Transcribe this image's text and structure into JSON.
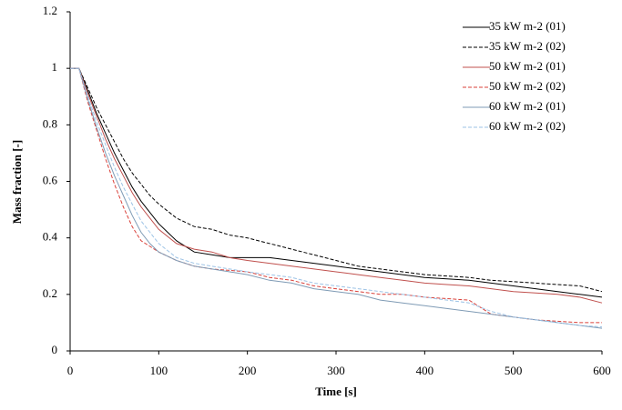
{
  "chart_data": {
    "type": "line",
    "x_label": "Time [s]",
    "y_label": "Mass fraction [-]",
    "x": [
      0,
      10,
      20,
      30,
      40,
      50,
      60,
      70,
      80,
      90,
      100,
      120,
      140,
      160,
      180,
      200,
      225,
      250,
      275,
      300,
      325,
      350,
      375,
      400,
      425,
      450,
      475,
      500,
      525,
      550,
      575,
      600
    ],
    "series": [
      {
        "name": "35 kW m-2 (01)",
        "color": "#000000",
        "dash": false,
        "values": [
          1,
          1,
          0.92,
          0.84,
          0.77,
          0.7,
          0.64,
          0.58,
          0.53,
          0.49,
          0.45,
          0.39,
          0.35,
          0.34,
          0.33,
          0.33,
          0.33,
          0.32,
          0.31,
          0.3,
          0.29,
          0.28,
          0.27,
          0.26,
          0.255,
          0.25,
          0.24,
          0.23,
          0.22,
          0.21,
          0.2,
          0.19
        ]
      },
      {
        "name": "35 kW m-2 (02)",
        "color": "#000000",
        "dash": true,
        "values": [
          1,
          1,
          0.93,
          0.86,
          0.8,
          0.74,
          0.68,
          0.63,
          0.59,
          0.55,
          0.52,
          0.47,
          0.44,
          0.43,
          0.41,
          0.4,
          0.38,
          0.36,
          0.34,
          0.32,
          0.3,
          0.29,
          0.28,
          0.27,
          0.265,
          0.26,
          0.25,
          0.245,
          0.24,
          0.235,
          0.23,
          0.21
        ]
      },
      {
        "name": "50 kW m-2 (01)",
        "color": "#c0504d",
        "dash": false,
        "values": [
          1,
          1,
          0.91,
          0.83,
          0.75,
          0.68,
          0.62,
          0.56,
          0.51,
          0.47,
          0.43,
          0.38,
          0.36,
          0.35,
          0.33,
          0.32,
          0.31,
          0.3,
          0.29,
          0.28,
          0.27,
          0.26,
          0.25,
          0.24,
          0.235,
          0.23,
          0.22,
          0.21,
          0.205,
          0.2,
          0.19,
          0.17
        ]
      },
      {
        "name": "50 kW m-2 (02)",
        "color": "#d9413a",
        "dash": true,
        "values": [
          1,
          1,
          0.88,
          0.78,
          0.68,
          0.59,
          0.51,
          0.44,
          0.39,
          0.37,
          0.35,
          0.32,
          0.3,
          0.29,
          0.285,
          0.28,
          0.26,
          0.25,
          0.23,
          0.22,
          0.21,
          0.2,
          0.2,
          0.19,
          0.185,
          0.18,
          0.13,
          0.12,
          0.11,
          0.105,
          0.1,
          0.1
        ]
      },
      {
        "name": "60 kW m-2 (01)",
        "color": "#7f9bb5",
        "dash": false,
        "values": [
          1,
          1,
          0.89,
          0.79,
          0.7,
          0.62,
          0.55,
          0.48,
          0.42,
          0.38,
          0.35,
          0.32,
          0.3,
          0.29,
          0.28,
          0.27,
          0.25,
          0.24,
          0.22,
          0.21,
          0.2,
          0.18,
          0.17,
          0.16,
          0.15,
          0.14,
          0.13,
          0.12,
          0.11,
          0.1,
          0.09,
          0.08
        ]
      },
      {
        "name": "60 kW m-2 (02)",
        "color": "#9dc3e6",
        "dash": true,
        "values": [
          1,
          1,
          0.9,
          0.81,
          0.73,
          0.65,
          0.58,
          0.52,
          0.46,
          0.42,
          0.38,
          0.33,
          0.31,
          0.3,
          0.29,
          0.28,
          0.27,
          0.26,
          0.24,
          0.23,
          0.22,
          0.21,
          0.2,
          0.19,
          0.18,
          0.17,
          0.14,
          0.12,
          0.11,
          0.1,
          0.09,
          0.085
        ]
      }
    ],
    "xlim": [
      0,
      600
    ],
    "xticks": [
      0,
      100,
      200,
      300,
      400,
      500,
      600
    ],
    "ylim": [
      0,
      1.2
    ],
    "yticks": [
      0,
      0.2,
      0.4,
      0.6,
      0.8,
      1,
      1.2
    ],
    "grid": false,
    "legend": "top-right"
  }
}
